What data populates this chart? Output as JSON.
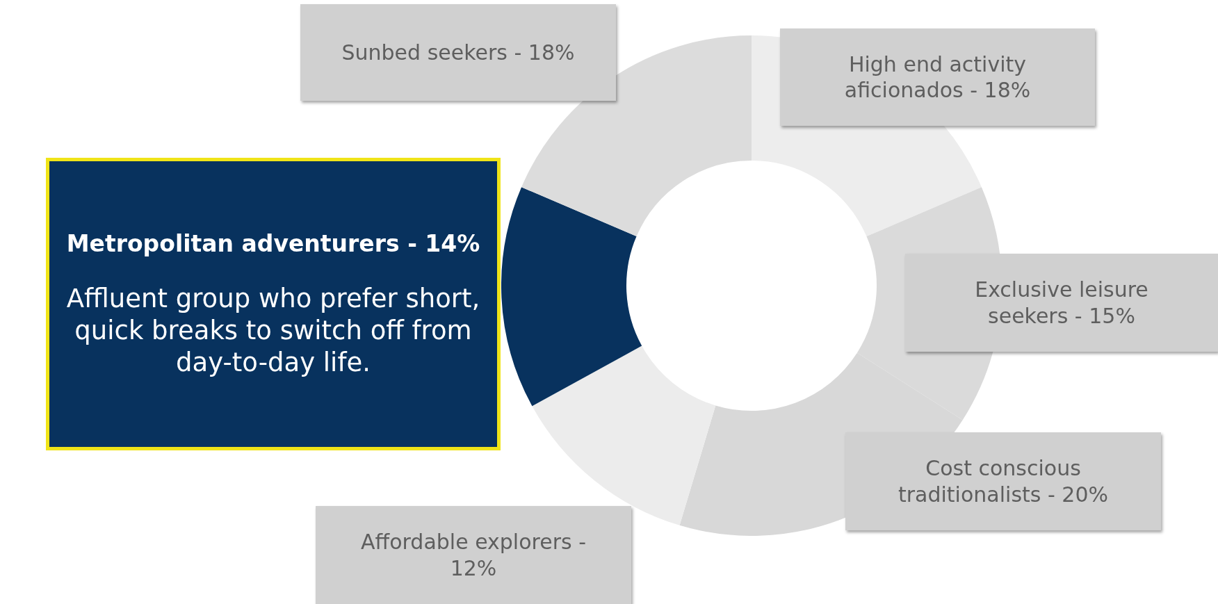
{
  "chart_data": {
    "type": "donut",
    "categories": [
      "High end activity aficionados -",
      "Exclusive leisure seekers -",
      "Cost conscious traditionalists -",
      "Affordable explorers -",
      "Metropolitan adventurers -",
      "Sunbed seekers -"
    ],
    "values": [
      18,
      15,
      20,
      12,
      14,
      18
    ],
    "value_labels": [
      "18%",
      "15%",
      "20%",
      "12%",
      "14%",
      "18%"
    ],
    "colors": [
      "#ededed",
      "#dadada",
      "#d8d8d8",
      "#ececec",
      "#08325e",
      "#dcdcdc"
    ],
    "annotations": [
      "Affluent group who prefer short, quick breaks to switch off from day-to-day life."
    ],
    "legend": false
  }
}
